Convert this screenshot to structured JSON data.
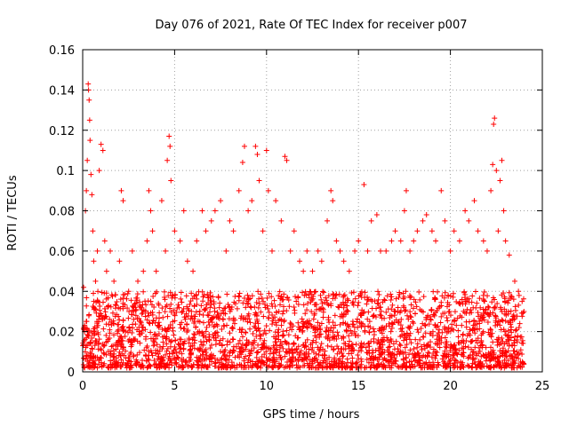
{
  "chart_data": {
    "type": "scatter",
    "title": "Day 076 of 2021, Rate Of TEC Index for receiver p007",
    "xlabel": "GPS time / hours",
    "ylabel": "ROTI / TECUs",
    "xlim": [
      0,
      25
    ],
    "ylim": [
      0,
      0.16
    ],
    "xticks": [
      0,
      5,
      10,
      15,
      20,
      25
    ],
    "xtick_labels": [
      "0",
      "5",
      "10",
      "15",
      "20",
      "25"
    ],
    "yticks": [
      0,
      0.02,
      0.04,
      0.06,
      0.08,
      0.1,
      0.12,
      0.14,
      0.16
    ],
    "ytick_labels": [
      "0",
      "0.02",
      "0.04",
      "0.06",
      "0.08",
      "0.1",
      "0.12",
      "0.14",
      "0.16"
    ],
    "grid": true,
    "marker": "+",
    "color": "#ff0000",
    "series": [
      {
        "name": "ROTI",
        "points": [
          [
            0.05,
            0.042
          ],
          [
            0.1,
            0.02
          ],
          [
            0.15,
            0.08
          ],
          [
            0.2,
            0.09
          ],
          [
            0.25,
            0.105
          ],
          [
            0.3,
            0.143
          ],
          [
            0.32,
            0.14
          ],
          [
            0.35,
            0.135
          ],
          [
            0.38,
            0.125
          ],
          [
            0.4,
            0.115
          ],
          [
            0.45,
            0.098
          ],
          [
            0.5,
            0.088
          ],
          [
            0.55,
            0.07
          ],
          [
            0.6,
            0.055
          ],
          [
            0.7,
            0.045
          ],
          [
            0.8,
            0.06
          ],
          [
            0.9,
            0.1
          ],
          [
            1.0,
            0.113
          ],
          [
            1.1,
            0.11
          ],
          [
            1.2,
            0.065
          ],
          [
            1.3,
            0.05
          ],
          [
            1.5,
            0.06
          ],
          [
            1.7,
            0.045
          ],
          [
            2.0,
            0.055
          ],
          [
            2.1,
            0.09
          ],
          [
            2.2,
            0.085
          ],
          [
            2.5,
            0.04
          ],
          [
            2.7,
            0.06
          ],
          [
            3.0,
            0.045
          ],
          [
            3.3,
            0.05
          ],
          [
            3.5,
            0.065
          ],
          [
            3.6,
            0.09
          ],
          [
            3.7,
            0.08
          ],
          [
            3.8,
            0.07
          ],
          [
            4.0,
            0.05
          ],
          [
            4.3,
            0.085
          ],
          [
            4.5,
            0.06
          ],
          [
            4.6,
            0.105
          ],
          [
            4.7,
            0.117
          ],
          [
            4.75,
            0.112
          ],
          [
            4.8,
            0.095
          ],
          [
            5.0,
            0.07
          ],
          [
            5.3,
            0.065
          ],
          [
            5.5,
            0.08
          ],
          [
            5.7,
            0.055
          ],
          [
            6.0,
            0.05
          ],
          [
            6.2,
            0.065
          ],
          [
            6.5,
            0.08
          ],
          [
            6.7,
            0.07
          ],
          [
            7.0,
            0.075
          ],
          [
            7.2,
            0.08
          ],
          [
            7.5,
            0.085
          ],
          [
            7.8,
            0.06
          ],
          [
            8.0,
            0.075
          ],
          [
            8.2,
            0.07
          ],
          [
            8.5,
            0.09
          ],
          [
            8.7,
            0.104
          ],
          [
            8.8,
            0.112
          ],
          [
            9.0,
            0.08
          ],
          [
            9.2,
            0.085
          ],
          [
            9.4,
            0.112
          ],
          [
            9.5,
            0.108
          ],
          [
            9.6,
            0.095
          ],
          [
            9.8,
            0.07
          ],
          [
            10.0,
            0.11
          ],
          [
            10.1,
            0.09
          ],
          [
            10.3,
            0.06
          ],
          [
            10.5,
            0.085
          ],
          [
            10.8,
            0.075
          ],
          [
            11.0,
            0.107
          ],
          [
            11.1,
            0.105
          ],
          [
            11.3,
            0.06
          ],
          [
            11.5,
            0.07
          ],
          [
            11.8,
            0.055
          ],
          [
            12.0,
            0.05
          ],
          [
            12.2,
            0.06
          ],
          [
            12.5,
            0.05
          ],
          [
            12.8,
            0.06
          ],
          [
            13.0,
            0.055
          ],
          [
            13.3,
            0.075
          ],
          [
            13.5,
            0.09
          ],
          [
            13.6,
            0.085
          ],
          [
            13.8,
            0.065
          ],
          [
            14.0,
            0.06
          ],
          [
            14.2,
            0.055
          ],
          [
            14.5,
            0.05
          ],
          [
            14.8,
            0.06
          ],
          [
            15.0,
            0.065
          ],
          [
            15.3,
            0.093
          ],
          [
            15.5,
            0.06
          ],
          [
            15.7,
            0.075
          ],
          [
            16.0,
            0.078
          ],
          [
            16.2,
            0.06
          ],
          [
            16.5,
            0.06
          ],
          [
            16.8,
            0.065
          ],
          [
            17.0,
            0.07
          ],
          [
            17.3,
            0.065
          ],
          [
            17.5,
            0.08
          ],
          [
            17.6,
            0.09
          ],
          [
            17.8,
            0.06
          ],
          [
            18.0,
            0.065
          ],
          [
            18.2,
            0.07
          ],
          [
            18.5,
            0.075
          ],
          [
            18.7,
            0.078
          ],
          [
            19.0,
            0.07
          ],
          [
            19.2,
            0.065
          ],
          [
            19.5,
            0.09
          ],
          [
            19.7,
            0.075
          ],
          [
            20.0,
            0.06
          ],
          [
            20.2,
            0.07
          ],
          [
            20.5,
            0.065
          ],
          [
            20.8,
            0.08
          ],
          [
            21.0,
            0.075
          ],
          [
            21.3,
            0.085
          ],
          [
            21.5,
            0.07
          ],
          [
            21.8,
            0.065
          ],
          [
            22.0,
            0.06
          ],
          [
            22.2,
            0.09
          ],
          [
            22.3,
            0.103
          ],
          [
            22.35,
            0.123
          ],
          [
            22.4,
            0.126
          ],
          [
            22.5,
            0.1
          ],
          [
            22.6,
            0.07
          ],
          [
            22.7,
            0.095
          ],
          [
            22.8,
            0.105
          ],
          [
            22.9,
            0.08
          ],
          [
            23.0,
            0.065
          ],
          [
            23.2,
            0.058
          ],
          [
            23.5,
            0.045
          ],
          [
            23.7,
            0.04
          ],
          [
            23.9,
            0.035
          ],
          [
            24.0,
            0.03
          ]
        ],
        "density_band": {
          "description": "dense baseline cluster",
          "x_range": [
            0,
            24
          ],
          "y_range": [
            0.002,
            0.04
          ]
        }
      }
    ]
  }
}
